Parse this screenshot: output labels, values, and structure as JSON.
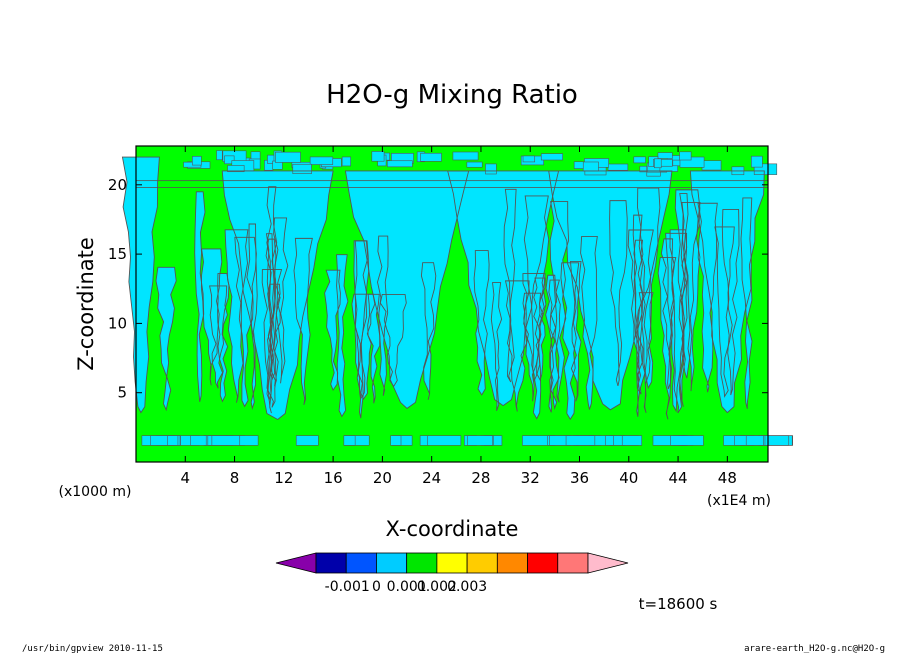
{
  "chart_data": {
    "type": "heatmap",
    "subtype": "filled-contour",
    "title": "H2O-g Mixing Ratio",
    "xlabel": "X-coordinate",
    "ylabel": "Z-coordinate",
    "x_unit_label": "(x1E4 m)",
    "y_unit_label": "(x1000 m)",
    "x_range": [
      0,
      51.3
    ],
    "y_range": [
      0,
      22.8
    ],
    "x_ticks": [
      "4",
      "8",
      "12",
      "16",
      "20",
      "24",
      "28",
      "32",
      "36",
      "40",
      "44",
      "48"
    ],
    "y_ticks": [
      "5",
      "10",
      "15",
      "20"
    ],
    "contour_levels": [
      -0.001,
      0,
      0.001,
      0.002,
      0.003
    ],
    "colorbar": {
      "tick_labels": [
        "-0.001",
        "0",
        "0.001",
        "0.002",
        "0.003"
      ],
      "colors": [
        "#8800aa",
        "#0000aa",
        "#0055ff",
        "#00ccff",
        "#00e600",
        "#ffff00",
        "#ffcc00",
        "#ff8800",
        "#ff0000",
        "#ff7777",
        "#ffbbcc"
      ],
      "extend": "both"
    },
    "dominant_colors": {
      "positive_small": "#00ff00",
      "near_zero": "#00e5ff"
    },
    "annotation": "t=18600 s"
  },
  "footer": {
    "left": "/usr/bin/gpview   2010-11-15",
    "right": "arare-earth_H2O-g.nc@H2O-g"
  }
}
